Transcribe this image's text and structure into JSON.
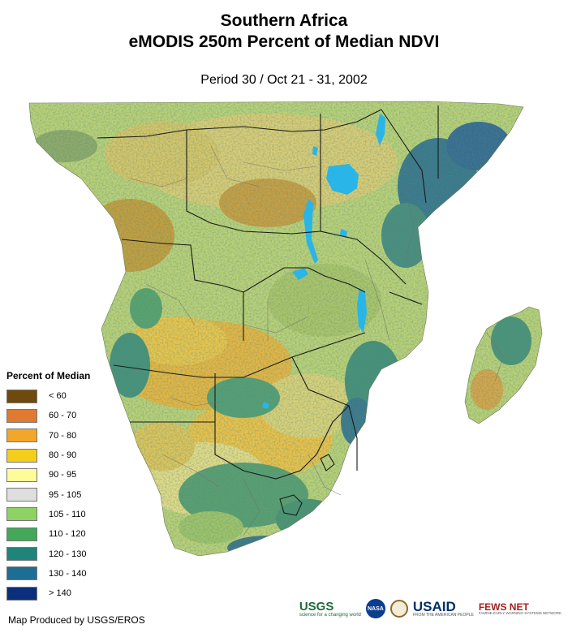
{
  "header": {
    "title_line1": "Southern Africa",
    "title_line2": "eMODIS 250m Percent of Median NDVI",
    "period": "Period 30 / Oct 21 - 31, 2002"
  },
  "legend": {
    "title": "Percent of Median",
    "items": [
      {
        "label": "< 60",
        "color": "#6f4a0e"
      },
      {
        "label": "60 - 70",
        "color": "#e07a32"
      },
      {
        "label": "70 - 80",
        "color": "#f2a62a"
      },
      {
        "label": "80 - 90",
        "color": "#f5ce1c"
      },
      {
        "label": "90 - 95",
        "color": "#fdfc98"
      },
      {
        "label": "95 - 105",
        "color": "#dedede"
      },
      {
        "label": "105 - 110",
        "color": "#8ed164"
      },
      {
        "label": "110 - 120",
        "color": "#43a85a"
      },
      {
        "label": "120 - 130",
        "color": "#1f8479"
      },
      {
        "label": "130 - 140",
        "color": "#1d6e95"
      },
      {
        "label": "> 140",
        "color": "#0b2f7d"
      }
    ]
  },
  "footer": {
    "credit": "Map Produced by USGS/EROS",
    "logos": {
      "usgs": "USGS",
      "usgs_tagline": "science for a changing world",
      "nasa": "NASA",
      "usaid": "USAID",
      "usaid_tagline": "FROM THE AMERICAN PEOPLE",
      "fews": "FEWS NET",
      "fews_tagline": "FAMINE EARLY WARNING SYSTEMS NETWORK"
    }
  }
}
